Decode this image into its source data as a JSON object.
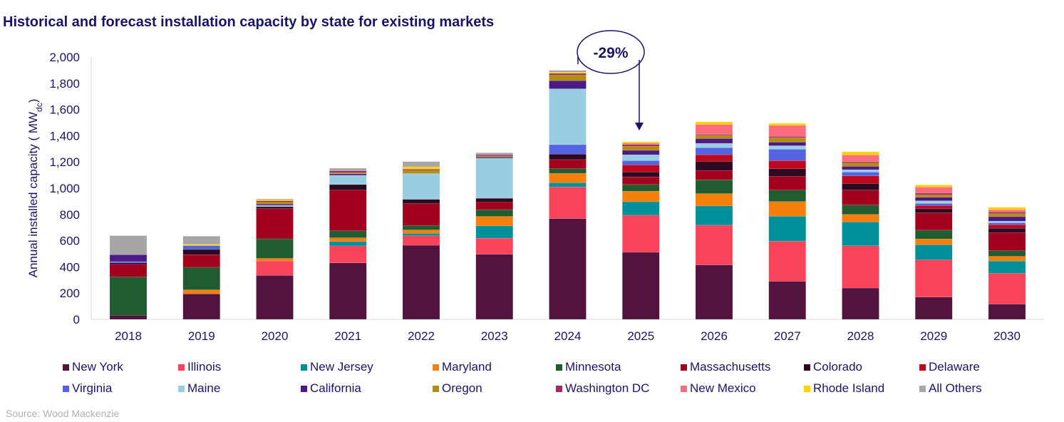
{
  "title": "Historical and forecast installation capacity by state for existing markets",
  "source": "Source: Wood Mackenzie",
  "annotation": "-29%",
  "chart_data": {
    "type": "bar",
    "stacked": true,
    "title": "Historical and forecast installation capacity by state for existing markets",
    "xlabel": "",
    "ylabel": "Annual installed capacity ( MW",
    "ylabel_sub": "dc",
    "ylabel_end": ")",
    "ylim": [
      0,
      2000
    ],
    "yticks": [
      "0",
      "200",
      "400",
      "600",
      "800",
      "1,000",
      "1,200",
      "1,400",
      "1,600",
      "1,800",
      "2,000"
    ],
    "ytick_values": [
      0,
      200,
      400,
      600,
      800,
      1000,
      1200,
      1400,
      1600,
      1800,
      2000
    ],
    "grid": false,
    "legend_position": "bottom",
    "categories": [
      "2018",
      "2019",
      "2020",
      "2021",
      "2022",
      "2023",
      "2024",
      "2025",
      "2026",
      "2027",
      "2028",
      "2029",
      "2030"
    ],
    "series": [
      {
        "name": "New York",
        "color": "#52143f",
        "values": [
          30,
          194,
          335,
          431,
          565,
          496,
          768,
          511,
          415,
          290,
          239,
          170,
          116
        ]
      },
      {
        "name": "Illinois",
        "color": "#f9435a",
        "values": [
          0,
          0,
          110,
          129,
          72,
          123,
          241,
          283,
          303,
          306,
          322,
          284,
          235
        ]
      },
      {
        "name": "New Jersey",
        "color": "#00909a",
        "values": [
          0,
          0,
          0,
          33,
          18,
          94,
          33,
          103,
          147,
          190,
          181,
          114,
          94
        ]
      },
      {
        "name": "Maryland",
        "color": "#f57f0a",
        "values": [
          0,
          31,
          20,
          29,
          27,
          72,
          71,
          80,
          94,
          112,
          58,
          45,
          36
        ]
      },
      {
        "name": "Minnesota",
        "color": "#1f5c30",
        "values": [
          293,
          172,
          149,
          53,
          33,
          51,
          36,
          51,
          105,
          87,
          71,
          67,
          42
        ]
      },
      {
        "name": "Massachusetts",
        "color": "#a3001e",
        "values": [
          96,
          96,
          230,
          311,
          167,
          58,
          69,
          58,
          71,
          105,
          114,
          132,
          138
        ]
      },
      {
        "name": "Colorado",
        "color": "#2e0a22",
        "values": [
          12,
          40,
          15,
          42,
          33,
          29,
          42,
          38,
          69,
          58,
          51,
          31,
          34
        ]
      },
      {
        "name": "Delaware",
        "color": "#c0061b",
        "values": [
          0,
          0,
          0,
          0,
          0,
          0,
          0,
          53,
          51,
          62,
          58,
          25,
          27
        ]
      },
      {
        "name": "Virginia",
        "color": "#5563e0",
        "values": [
          10,
          29,
          0,
          0,
          0,
          0,
          72,
          33,
          54,
          87,
          29,
          16,
          14
        ]
      },
      {
        "name": "Maine",
        "color": "#98cde2",
        "values": [
          0,
          0,
          10,
          71,
          197,
          306,
          426,
          45,
          33,
          27,
          18,
          20,
          13
        ]
      },
      {
        "name": "California",
        "color": "#4c1a85",
        "values": [
          52,
          0,
          10,
          11,
          0,
          9,
          62,
          33,
          36,
          27,
          25,
          27,
          34
        ]
      },
      {
        "name": "Oregon",
        "color": "#b38e0b",
        "values": [
          0,
          0,
          15,
          8,
          24,
          9,
          42,
          31,
          25,
          34,
          27,
          18,
          24
        ]
      },
      {
        "name": "Washington DC",
        "color": "#9b2c6a",
        "values": [
          0,
          0,
          10,
          14,
          9,
          9,
          13,
          13,
          7,
          9,
          9,
          13,
          11
        ]
      },
      {
        "name": "New Mexico",
        "color": "#ff6b7f",
        "values": [
          0,
          0,
          0,
          0,
          0,
          0,
          0,
          11,
          76,
          85,
          51,
          47,
          18
        ]
      },
      {
        "name": "Rhode Island",
        "color": "#ffd200",
        "values": [
          0,
          10,
          10,
          0,
          18,
          0,
          9,
          11,
          20,
          16,
          25,
          16,
          18
        ]
      },
      {
        "name": "All Others",
        "color": "#a6a6a6",
        "values": [
          145,
          62,
          5,
          20,
          40,
          14,
          14,
          0,
          0,
          0,
          0,
          0,
          0
        ]
      }
    ]
  }
}
